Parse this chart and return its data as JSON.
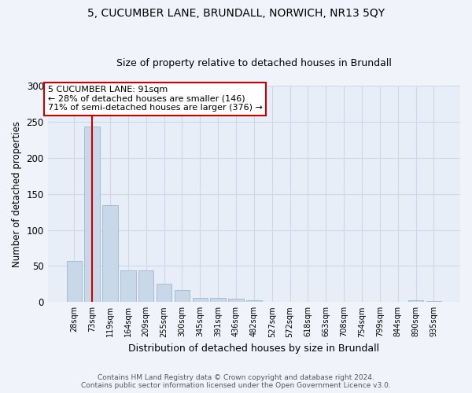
{
  "title": "5, CUCUMBER LANE, BRUNDALL, NORWICH, NR13 5QY",
  "subtitle": "Size of property relative to detached houses in Brundall",
  "xlabel": "Distribution of detached houses by size in Brundall",
  "ylabel": "Number of detached properties",
  "footer_line1": "Contains HM Land Registry data © Crown copyright and database right 2024.",
  "footer_line2": "Contains public sector information licensed under the Open Government Licence v3.0.",
  "bar_labels": [
    "28sqm",
    "73sqm",
    "119sqm",
    "164sqm",
    "209sqm",
    "255sqm",
    "300sqm",
    "345sqm",
    "391sqm",
    "436sqm",
    "482sqm",
    "527sqm",
    "572sqm",
    "618sqm",
    "663sqm",
    "708sqm",
    "754sqm",
    "799sqm",
    "844sqm",
    "890sqm",
    "935sqm"
  ],
  "bar_values": [
    57,
    243,
    134,
    44,
    44,
    25,
    17,
    6,
    6,
    5,
    2,
    0,
    0,
    0,
    0,
    0,
    0,
    0,
    0,
    2,
    1
  ],
  "bar_color": "#c8d8e8",
  "bar_edge_color": "#a0b8cc",
  "vline_x": 1.0,
  "vline_color": "#cc0000",
  "annotation_text": "5 CUCUMBER LANE: 91sqm\n← 28% of detached houses are smaller (146)\n71% of semi-detached houses are larger (376) →",
  "annotation_box_color": "#ffffff",
  "annotation_box_edge": "#cc0000",
  "ylim": [
    0,
    300
  ],
  "yticks": [
    0,
    50,
    100,
    150,
    200,
    250,
    300
  ],
  "grid_color": "#d0d8e8",
  "plot_bg_color": "#e8eef8",
  "fig_bg_color": "#f0f4fa",
  "title_fontsize": 10,
  "subtitle_fontsize": 9,
  "ylabel_fontsize": 8.5,
  "xlabel_fontsize": 9,
  "footer_fontsize": 6.5,
  "annotation_fontsize": 8
}
